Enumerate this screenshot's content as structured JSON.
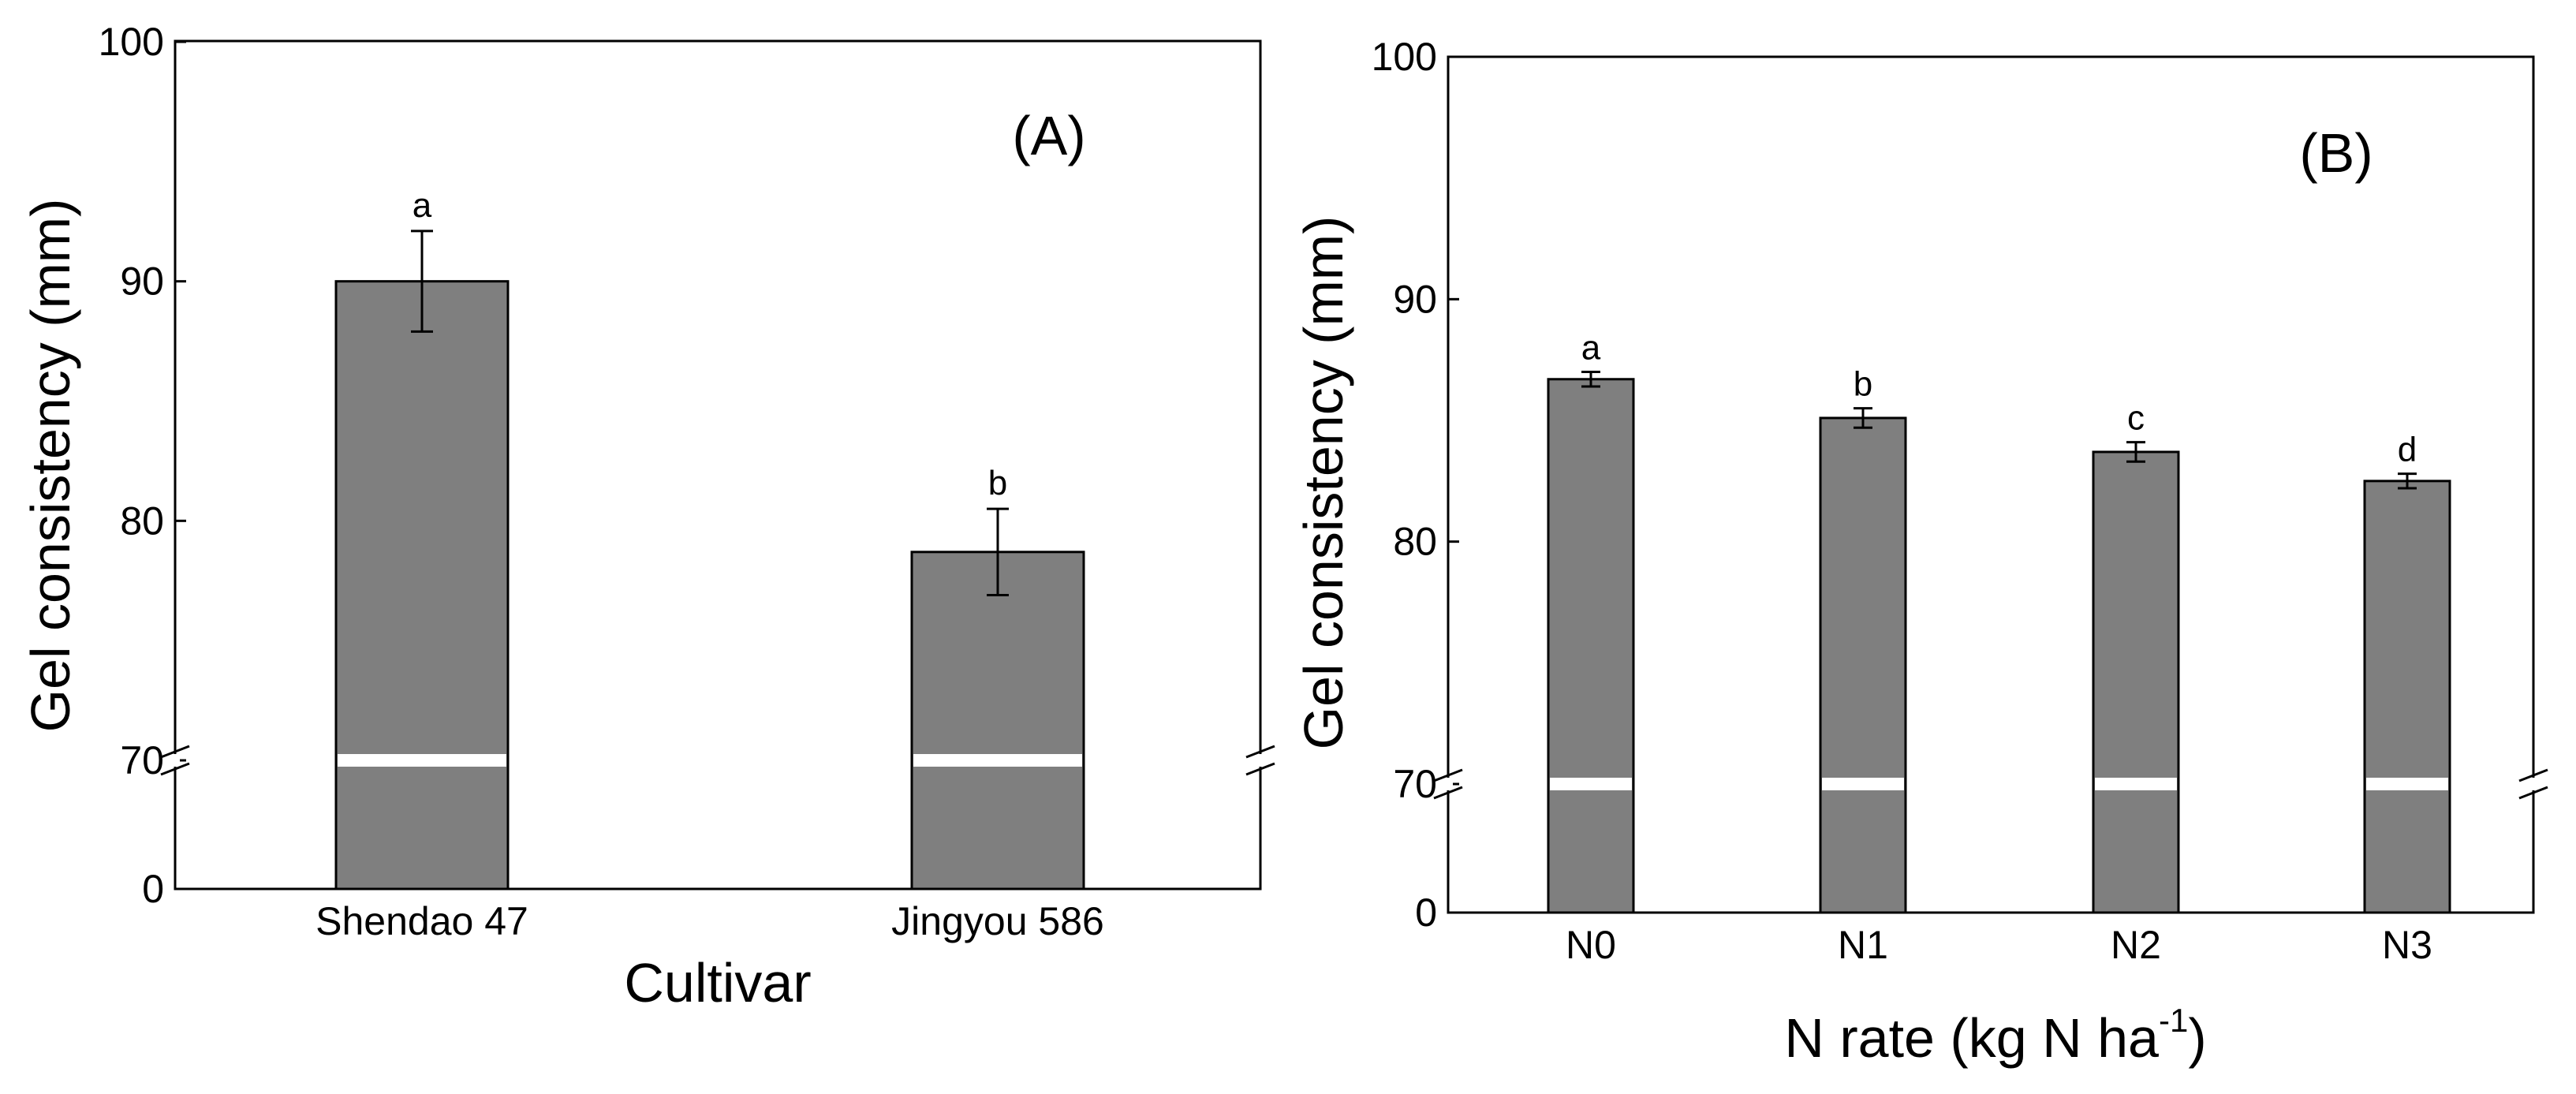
{
  "chart_data": [
    {
      "type": "bar",
      "panel_label": "(A)",
      "title": "",
      "xlabel": "Cultivar",
      "ylabel": "Gel consistency (mm)",
      "categories": [
        "Shendao 47",
        "Jingyou 586"
      ],
      "values": [
        90.0,
        78.7
      ],
      "errors": [
        2.1,
        1.8
      ],
      "significance": [
        "a",
        "b"
      ],
      "y_axis": "broken",
      "y_lower_segment": [
        0,
        70
      ],
      "y_upper_segment": [
        70,
        100
      ],
      "yticks": [
        "0",
        "70",
        "80",
        "90",
        "100"
      ]
    },
    {
      "type": "bar",
      "panel_label": "(B)",
      "title": "",
      "xlabel_main": "N rate (kg N ha",
      "xlabel_sup": "-1",
      "xlabel_close": ")",
      "ylabel": "Gel consistency (mm)",
      "categories": [
        "N0",
        "N1",
        "N2",
        "N3"
      ],
      "values": [
        86.7,
        85.1,
        83.7,
        82.5
      ],
      "errors": [
        0.3,
        0.4,
        0.4,
        0.3
      ],
      "significance": [
        "a",
        "b",
        "c",
        "d"
      ],
      "y_axis": "broken",
      "y_lower_segment": [
        0,
        70
      ],
      "y_upper_segment": [
        70,
        100
      ],
      "yticks": [
        "0",
        "70",
        "80",
        "90",
        "100"
      ]
    }
  ]
}
